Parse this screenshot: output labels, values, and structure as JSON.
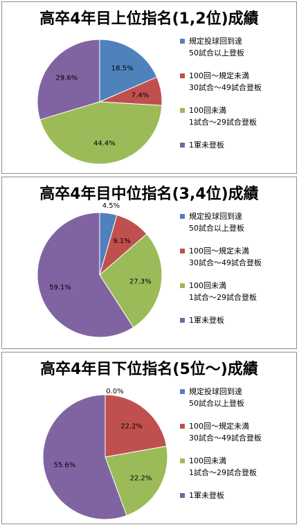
{
  "charts": [
    {
      "title": "高卒4年目上位指名(1,2位)成績",
      "chart_data": {
        "type": "pie",
        "title": "高卒4年目上位指名(1,2位)成績",
        "categories": [
          "規定投球回到達 50試合以上登板",
          "100回～規定未満 30試合～49試合登板",
          "100回未満 1試合～29試合登板",
          "1軍未登板"
        ],
        "values": [
          18.5,
          7.4,
          44.4,
          29.6
        ],
        "labels": [
          "18.5%",
          "7.4%",
          "44.4%",
          "29.6%"
        ],
        "legend_position": "right"
      }
    },
    {
      "title": "高卒4年目中位指名(3,4位)成績",
      "chart_data": {
        "type": "pie",
        "title": "高卒4年目中位指名(3,4位)成績",
        "categories": [
          "規定投球回到達 50試合以上登板",
          "100回～規定未満 30試合～49試合登板",
          "100回未満 1試合～29試合登板",
          "1軍未登板"
        ],
        "values": [
          4.5,
          9.1,
          27.3,
          59.1
        ],
        "labels": [
          "4.5%",
          "9.1%",
          "27.3%",
          "59.1%"
        ],
        "legend_position": "right"
      }
    },
    {
      "title": "高卒4年目下位指名(5位～)成績",
      "chart_data": {
        "type": "pie",
        "title": "高卒4年目下位指名(5位～)成績",
        "categories": [
          "規定投球回到達 50試合以上登板",
          "100回～規定未満 30試合～49試合登板",
          "100回未満 1試合～29試合登板",
          "1軍未登板"
        ],
        "values": [
          0.0,
          22.2,
          22.2,
          55.6
        ],
        "labels": [
          "0.0%",
          "22.2%",
          "22.2%",
          "55.6%"
        ],
        "legend_position": "right"
      }
    }
  ],
  "legend": [
    {
      "line1": "規定投球回到達",
      "line2": "50試合以上登板",
      "color": "#4f81bd"
    },
    {
      "line1": "100回～規定未満",
      "line2": "30試合～49試合登板",
      "color": "#c0504d"
    },
    {
      "line1": "100回未満",
      "line2": "1試合～29試合登板",
      "color": "#9bbb59"
    },
    {
      "line1": "1軍未登板",
      "line2": "",
      "color": "#8064a2"
    }
  ]
}
